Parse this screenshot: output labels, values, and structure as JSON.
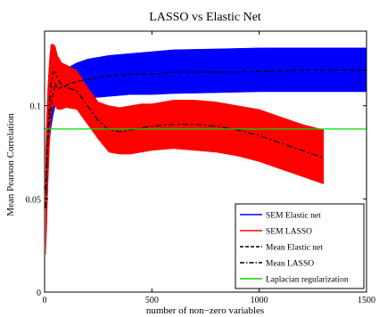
{
  "chart_data": {
    "type": "line",
    "title": "LASSO vs Elastic Net",
    "xlabel": "number of non−zero variables",
    "ylabel": "Mean Pearson Correlation",
    "xlim": [
      0,
      1500
    ],
    "ylim": [
      0,
      0.14
    ],
    "xticks": [
      0,
      500,
      1000,
      1500
    ],
    "xtick_labels": [
      "0",
      "500",
      "1000",
      "1500"
    ],
    "yticks": [
      0,
      0.05,
      0.1
    ],
    "ytick_labels": [
      "0",
      "0.05",
      "0.1"
    ],
    "grid": false,
    "legend_position": "bottom-right",
    "colors": {
      "sem_elastic": "#0000ff",
      "sem_lasso": "#ff0000",
      "mean_elastic": "#000000",
      "mean_lasso": "#000000",
      "laplacian": "#00dd00"
    },
    "series": [
      {
        "key": "sem_elastic",
        "name": "SEM Elastic net",
        "style": "band",
        "x": [
          5,
          10,
          20,
          30,
          40,
          50,
          60,
          80,
          100,
          150,
          200,
          300,
          400,
          500,
          600,
          800,
          1000,
          1200,
          1400,
          1500
        ],
        "upper": [
          0.065,
          0.08,
          0.1,
          0.11,
          0.118,
          0.123,
          0.119,
          0.119,
          0.12,
          0.123,
          0.125,
          0.127,
          0.128,
          0.129,
          0.13,
          0.1305,
          0.131,
          0.131,
          0.131,
          0.131
        ],
        "lower": [
          0.045,
          0.06,
          0.078,
          0.088,
          0.095,
          0.1,
          0.098,
          0.101,
          0.103,
          0.104,
          0.104,
          0.105,
          0.106,
          0.106,
          0.1065,
          0.107,
          0.1075,
          0.1075,
          0.1075,
          0.1075
        ]
      },
      {
        "key": "sem_lasso",
        "name": "SEM LASSO",
        "style": "band",
        "x": [
          5,
          10,
          15,
          20,
          25,
          30,
          40,
          50,
          60,
          80,
          100,
          150,
          200,
          250,
          300,
          350,
          400,
          450,
          500,
          600,
          700,
          800,
          900,
          1000,
          1100,
          1200,
          1300
        ],
        "upper": [
          0.075,
          0.095,
          0.11,
          0.12,
          0.128,
          0.133,
          0.133,
          0.132,
          0.127,
          0.123,
          0.122,
          0.119,
          0.11,
          0.102,
          0.1,
          0.099,
          0.1,
          0.101,
          0.101,
          0.103,
          0.103,
          0.102,
          0.1,
          0.098,
          0.094,
          0.09,
          0.087
        ],
        "lower": [
          0.02,
          0.035,
          0.055,
          0.07,
          0.085,
          0.095,
          0.1,
          0.1,
          0.098,
          0.098,
          0.099,
          0.098,
          0.09,
          0.082,
          0.075,
          0.074,
          0.074,
          0.075,
          0.076,
          0.077,
          0.076,
          0.075,
          0.073,
          0.07,
          0.066,
          0.062,
          0.058
        ]
      },
      {
        "key": "mean_elastic",
        "name": "Mean Elastic net",
        "style": "dashed",
        "x": [
          5,
          10,
          20,
          30,
          40,
          50,
          60,
          80,
          100,
          150,
          200,
          300,
          400,
          500,
          600,
          800,
          1000,
          1200,
          1400,
          1500
        ],
        "y": [
          0.055,
          0.07,
          0.089,
          0.099,
          0.107,
          0.112,
          0.109,
          0.11,
          0.111,
          0.113,
          0.114,
          0.116,
          0.117,
          0.117,
          0.118,
          0.118,
          0.1185,
          0.119,
          0.119,
          0.119
        ]
      },
      {
        "key": "mean_lasso",
        "name": "Mean LASSO",
        "style": "dashdot",
        "x": [
          5,
          10,
          15,
          20,
          30,
          40,
          50,
          60,
          80,
          100,
          150,
          200,
          250,
          300,
          350,
          400,
          450,
          500,
          600,
          700,
          800,
          900,
          1000,
          1100,
          1200,
          1300
        ],
        "y": [
          0.045,
          0.065,
          0.085,
          0.095,
          0.112,
          0.118,
          0.118,
          0.115,
          0.111,
          0.11,
          0.108,
          0.1,
          0.092,
          0.087,
          0.086,
          0.087,
          0.088,
          0.089,
          0.09,
          0.09,
          0.089,
          0.087,
          0.084,
          0.08,
          0.076,
          0.072
        ]
      },
      {
        "key": "laplacian",
        "name": "Laplacian regularization",
        "style": "solid",
        "x": [
          0,
          1500
        ],
        "y": [
          0.0875,
          0.0875
        ]
      }
    ]
  }
}
